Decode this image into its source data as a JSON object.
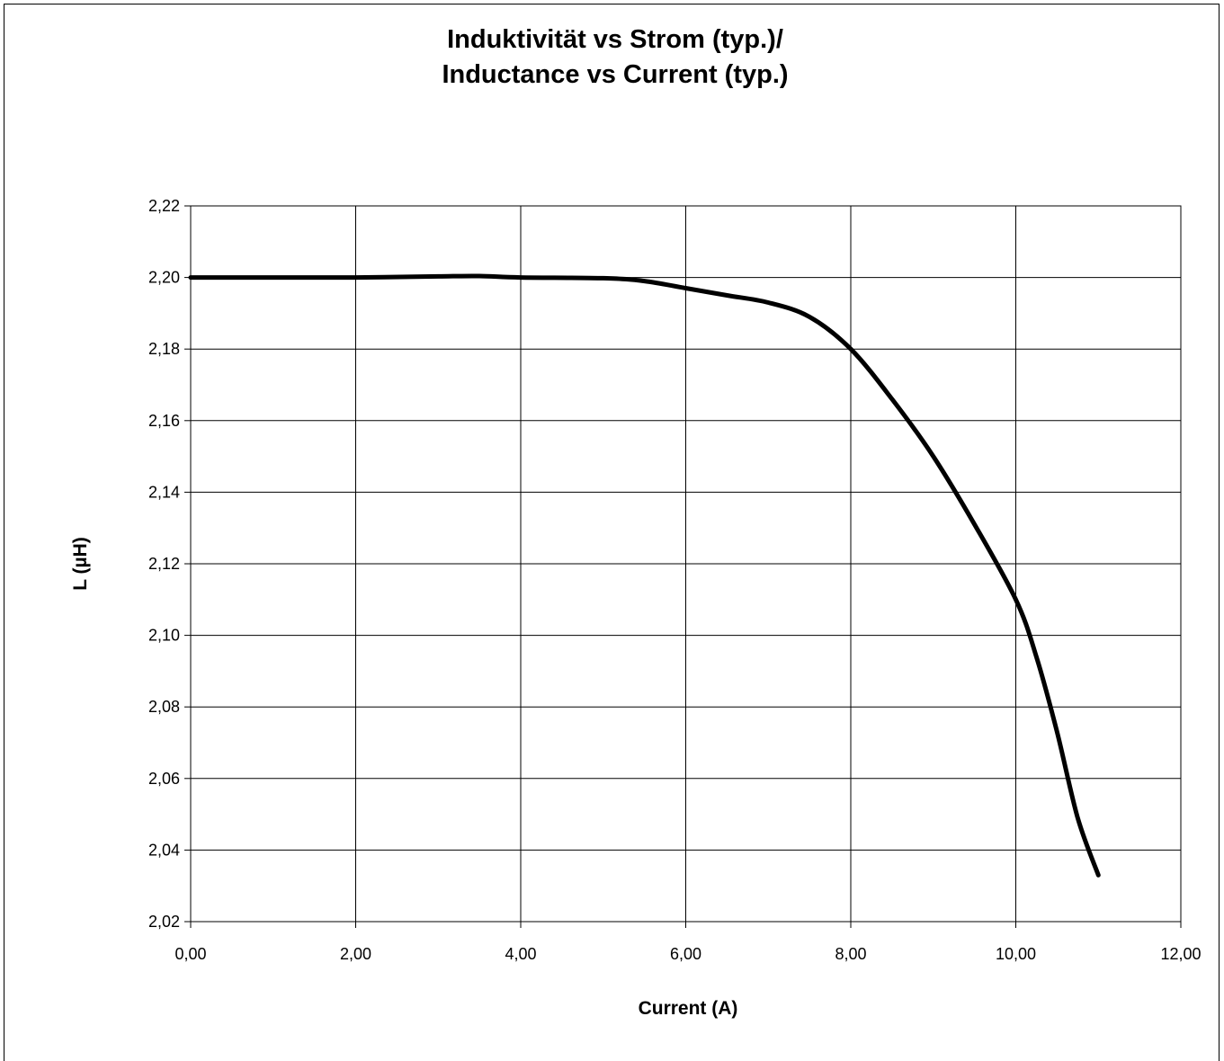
{
  "chart_data": {
    "type": "line",
    "title_lines": [
      "Induktivität vs Strom (typ.)/",
      "Inductance vs Current (typ.)"
    ],
    "xlabel": "Current (A)",
    "ylabel": "L (µH)",
    "xlim": [
      0,
      12
    ],
    "ylim": [
      2.02,
      2.22
    ],
    "x_ticks": [
      "0,00",
      "2,00",
      "4,00",
      "6,00",
      "8,00",
      "10,00",
      "12,00"
    ],
    "y_ticks": [
      "2,02",
      "2,04",
      "2,06",
      "2,08",
      "2,10",
      "2,12",
      "2,14",
      "2,16",
      "2,18",
      "2,20",
      "2,22"
    ],
    "grid": true,
    "legend": false,
    "line_color": "#000000",
    "series": [
      {
        "x": [
          0,
          1,
          2,
          3,
          3.5,
          4,
          5,
          5.5,
          6,
          6.5,
          7,
          7.5,
          8,
          8.5,
          9,
          9.5,
          10,
          10.25,
          10.5,
          10.75,
          11
        ],
        "y": [
          2.2,
          2.2,
          2.2,
          2.2003,
          2.2004,
          2.2,
          2.1998,
          2.199,
          2.197,
          2.195,
          2.193,
          2.189,
          2.18,
          2.166,
          2.15,
          2.131,
          2.11,
          2.094,
          2.073,
          2.049,
          2.033
        ]
      }
    ]
  }
}
